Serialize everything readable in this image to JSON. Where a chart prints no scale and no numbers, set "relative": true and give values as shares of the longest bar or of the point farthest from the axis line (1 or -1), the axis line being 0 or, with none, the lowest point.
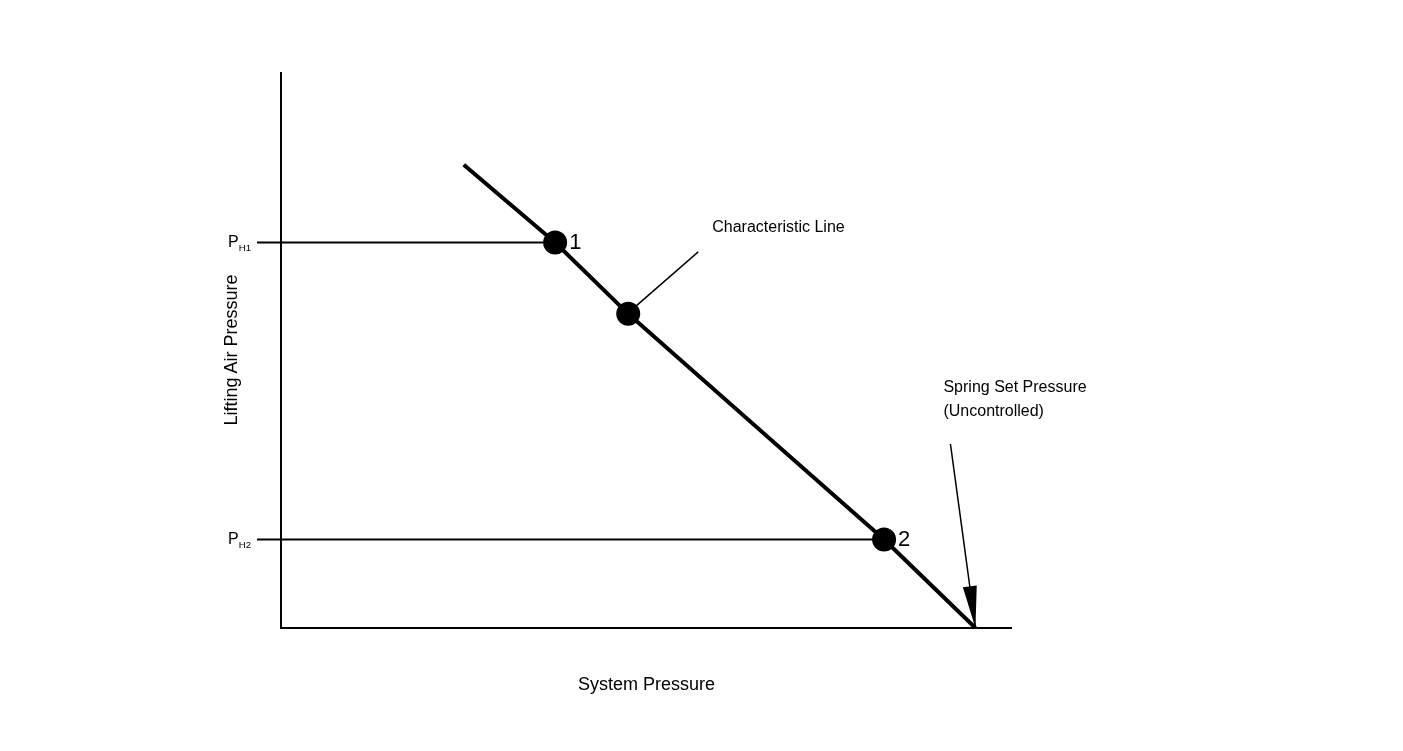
{
  "chart_data": {
    "type": "line",
    "relative": true,
    "xlabel": "System Pressure",
    "ylabel": "Lifting Air Pressure",
    "tick_labels": false,
    "legend": false,
    "categories": [
      null,
      null,
      null,
      null,
      null,
      null,
      null,
      null,
      null,
      null,
      null,
      null,
      null,
      null,
      null,
      null,
      null,
      null,
      null,
      null,
      null,
      null,
      null,
      null,
      null,
      null,
      null,
      null,
      null,
      null,
      null,
      null,
      null,
      null,
      null,
      null,
      null,
      null,
      null,
      null,
      null
    ],
    "series": [
      {
        "color": "#000000",
        "marker": "circle",
        "values": [
          null,
          null,
          null,
          null,
          null,
          null,
          null,
          null,
          null,
          null,
          1,
          null,
          null,
          null,
          null,
          0.832,
          null,
          null,
          null,
          0.678,
          null,
          null,
          null,
          null,
          null,
          null,
          null,
          null,
          null,
          null,
          null,
          null,
          null,
          0.191,
          null,
          null,
          null,
          null,
          0,
          null,
          null
        ]
      }
    ],
    "ref_lines": [
      {
        "axis": "y",
        "value": 0.832,
        "label": "P$_{H1}$",
        "color": "#000000"
      },
      {
        "axis": "y",
        "value": 0.191,
        "label": "P$_{H2}$",
        "color": "#000000"
      }
    ],
    "annotations": [
      "1",
      "Characteristic Line",
      "2",
      "Spring Set Pressure\n(Uncontrolled)"
    ]
  }
}
